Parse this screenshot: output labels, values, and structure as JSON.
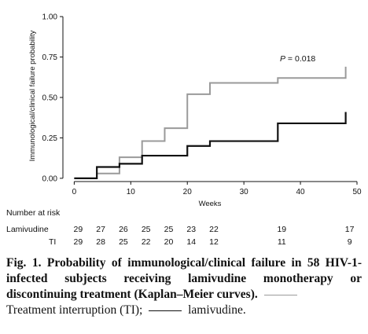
{
  "chart_data": {
    "type": "line",
    "step": true,
    "xlabel": "Weeks",
    "ylabel": "Immunological/clinical failure probability",
    "xlim": [
      -2,
      50
    ],
    "ylim": [
      -0.02,
      1.02
    ],
    "xticks": [
      0,
      10,
      20,
      30,
      40,
      50
    ],
    "yticks": [
      0,
      0.25,
      0.5,
      0.75,
      1.0
    ],
    "ytick_labels": [
      "0.00",
      "0.25",
      "0.50",
      "0.75",
      "1.00"
    ],
    "annotation": "P = 0.018",
    "series": [
      {
        "key": "ti",
        "color": "#9a9a9a",
        "x": [
          0,
          4,
          8,
          12,
          16,
          20,
          24,
          36,
          48
        ],
        "y": [
          0,
          0.03,
          0.13,
          0.23,
          0.31,
          0.52,
          0.59,
          0.62,
          0.69
        ]
      },
      {
        "key": "lamivudine",
        "color": "#111111",
        "x": [
          0,
          4,
          8,
          12,
          20,
          24,
          36,
          48
        ],
        "y": [
          0,
          0.07,
          0.09,
          0.14,
          0.2,
          0.23,
          0.34,
          0.41
        ]
      }
    ],
    "series_end_x": 48,
    "number_at_risk": {
      "title": "Number at risk",
      "rows": [
        {
          "label": "Lamivudine",
          "x": [
            0,
            4,
            8,
            12,
            16,
            20,
            24,
            36,
            48
          ],
          "values": [
            "29",
            "27",
            "26",
            "25",
            "25",
            "23",
            "22",
            "19",
            "17"
          ]
        },
        {
          "label": "TI",
          "x": [
            0,
            4,
            8,
            12,
            16,
            20,
            24,
            36,
            48
          ],
          "values": [
            "29",
            "28",
            "25",
            "22",
            "20",
            "14",
            "12",
            "11",
            "9"
          ]
        }
      ]
    }
  },
  "caption": {
    "fig_number": "Fig. 1.",
    "bold_text": "Probability of immunological/clinical failure in 58 HIV-1-infected subjects receiving lamivudine monotherapy or discontinuing treatment (Kaplan–Meier curves).",
    "ti_legend": "Treatment interruption (TI);",
    "lam_legend": "lamivudine."
  }
}
